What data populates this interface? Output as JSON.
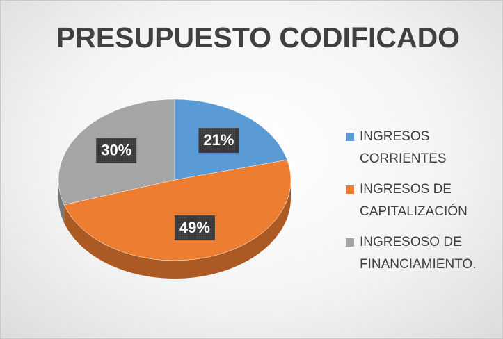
{
  "chart_data": {
    "type": "pie",
    "title": "PRESUPUESTO CODIFICADO",
    "categories": [
      "INGRESOS CORRIENTES",
      "INGRESOS DE CAPITALIZACIÓN",
      "INGRESOSO DE FINANCIAMIENTO."
    ],
    "values": [
      21,
      49,
      30
    ],
    "value_labels": [
      "21%",
      "49%",
      "30%"
    ],
    "colors": [
      "#5b9bd5",
      "#ed7d31",
      "#a5a5a5"
    ],
    "legend": "right"
  }
}
